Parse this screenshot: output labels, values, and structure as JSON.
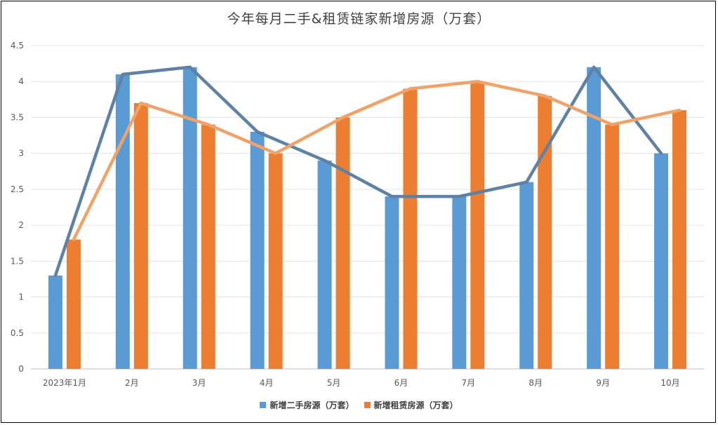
{
  "title": "今年每月二手&租赁链家新增房源（万套）",
  "chart_data": {
    "type": "bar",
    "title": "今年每月二手&租赁链家新增房源（万套）",
    "categories": [
      "2023年1月",
      "2月",
      "3月",
      "4月",
      "5月",
      "6月",
      "7月",
      "8月",
      "9月",
      "10月"
    ],
    "series": [
      {
        "name": "新增二手房源（万套）",
        "color": "#5B9BD5",
        "line_color": "#5E81A4",
        "values": [
          1.3,
          4.1,
          4.2,
          3.3,
          2.9,
          2.4,
          2.4,
          2.6,
          4.2,
          3.0
        ]
      },
      {
        "name": "新增租赁房源（万套）",
        "color": "#ED7D31",
        "line_color": "#F0A268",
        "values": [
          1.8,
          3.7,
          3.4,
          3.0,
          3.5,
          3.9,
          4.0,
          3.8,
          3.4,
          3.6
        ]
      }
    ],
    "overlay_lines": true,
    "ylim": [
      0,
      4.5
    ],
    "yticks": [
      "0",
      "0.5",
      "1",
      "1.5",
      "2",
      "2.5",
      "3",
      "3.5",
      "4",
      "4.5"
    ],
    "grid": true,
    "legend_position": "bottom"
  }
}
